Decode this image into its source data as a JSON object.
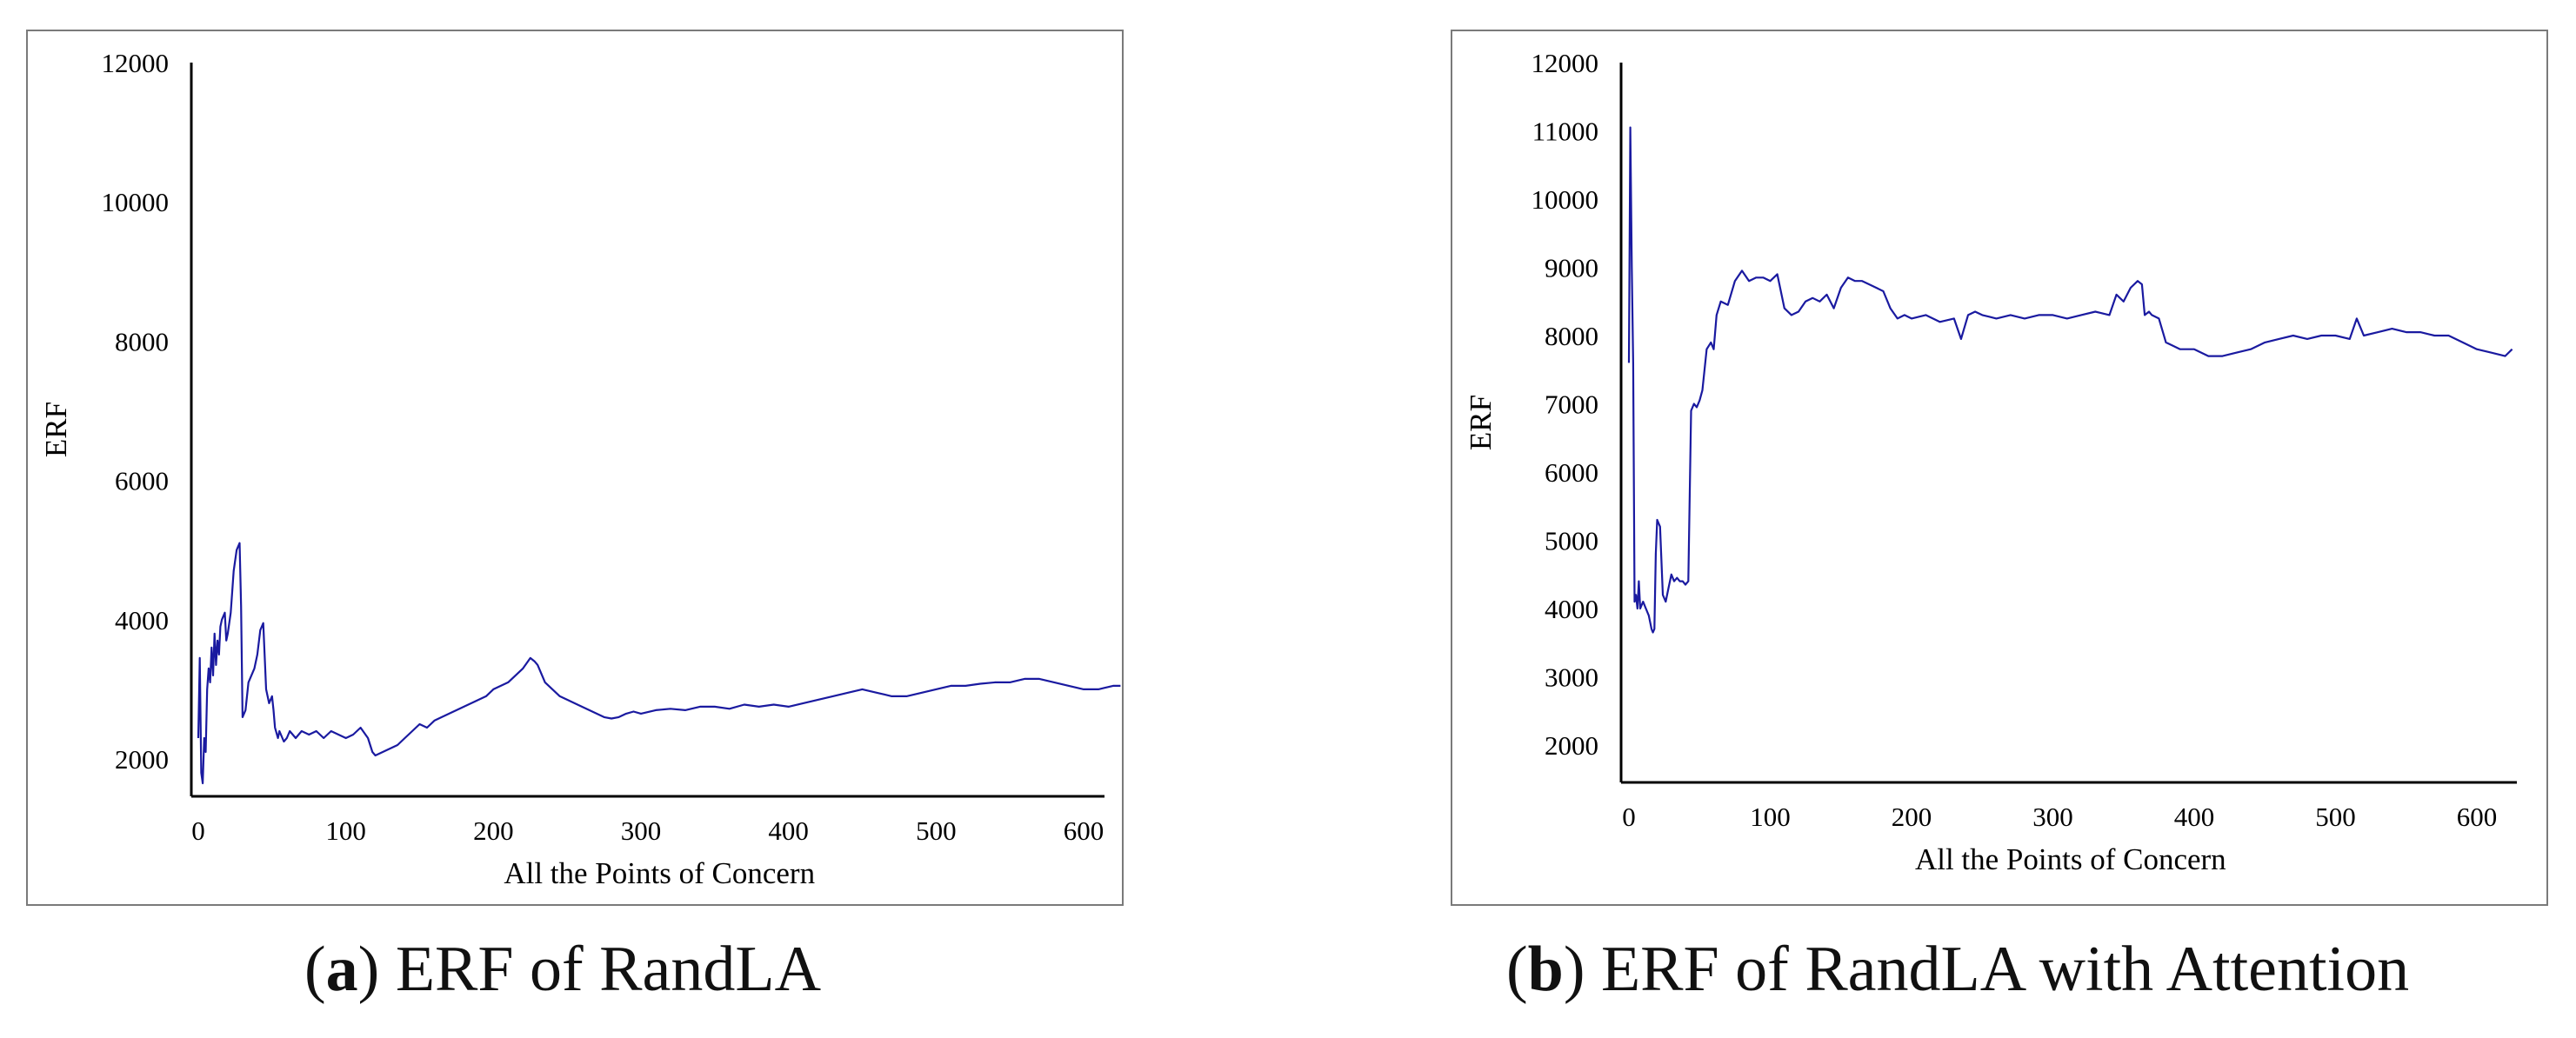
{
  "chart_data": [
    {
      "type": "line",
      "title": "",
      "xlabel": "All the Points of Concern",
      "ylabel": "ERF",
      "xlim": [
        0,
        625
      ],
      "ylim": [
        1500,
        12000
      ],
      "xticks": [
        0,
        100,
        200,
        300,
        400,
        500,
        600
      ],
      "yticks": [
        2000,
        4000,
        6000,
        8000,
        10000,
        12000
      ],
      "grid": false,
      "line_color": "#1a1aa0",
      "caption": {
        "label": "a",
        "text": "ERF of RandLA"
      },
      "series": [
        {
          "name": "ERF",
          "x": [
            0,
            1,
            2,
            3,
            4,
            5,
            6,
            7,
            8,
            9,
            10,
            11,
            12,
            13,
            14,
            15,
            16,
            18,
            19,
            20,
            22,
            23,
            24,
            26,
            27,
            28,
            29,
            30,
            32,
            33,
            34,
            36,
            38,
            40,
            42,
            44,
            46,
            48,
            50,
            51,
            52,
            54,
            55,
            56,
            58,
            60,
            62,
            64,
            66,
            70,
            75,
            80,
            85,
            90,
            95,
            100,
            105,
            110,
            115,
            118,
            120,
            125,
            130,
            135,
            140,
            145,
            150,
            155,
            160,
            165,
            170,
            175,
            180,
            185,
            190,
            195,
            200,
            205,
            210,
            215,
            220,
            225,
            228,
            230,
            232,
            235,
            240,
            245,
            250,
            255,
            260,
            265,
            270,
            275,
            280,
            285,
            290,
            295,
            300,
            310,
            320,
            330,
            340,
            350,
            360,
            370,
            380,
            390,
            400,
            410,
            420,
            430,
            440,
            450,
            460,
            470,
            480,
            490,
            500,
            510,
            520,
            530,
            540,
            550,
            560,
            570,
            580,
            590,
            600,
            610,
            620,
            625
          ],
          "values": [
            2300,
            3450,
            1800,
            1650,
            2300,
            2100,
            3000,
            3300,
            3100,
            3600,
            3200,
            3800,
            3350,
            3700,
            3500,
            3900,
            4000,
            4100,
            3700,
            3800,
            4100,
            4400,
            4700,
            5000,
            5050,
            5100,
            4200,
            2600,
            2700,
            2900,
            3100,
            3200,
            3300,
            3500,
            3850,
            3950,
            3000,
            2800,
            2900,
            2700,
            2450,
            2300,
            2400,
            2350,
            2250,
            2300,
            2400,
            2350,
            2300,
            2400,
            2350,
            2400,
            2300,
            2400,
            2350,
            2300,
            2350,
            2450,
            2300,
            2100,
            2050,
            2100,
            2150,
            2200,
            2300,
            2400,
            2500,
            2450,
            2550,
            2600,
            2650,
            2700,
            2750,
            2800,
            2850,
            2900,
            3000,
            3050,
            3100,
            3200,
            3300,
            3450,
            3400,
            3350,
            3250,
            3100,
            3000,
            2900,
            2850,
            2800,
            2750,
            2700,
            2650,
            2600,
            2580,
            2600,
            2650,
            2680,
            2650,
            2700,
            2720,
            2700,
            2750,
            2750,
            2720,
            2780,
            2750,
            2780,
            2750,
            2800,
            2850,
            2900,
            2950,
            3000,
            2950,
            2900,
            2900,
            2950,
            3000,
            3050,
            3050,
            3080,
            3100,
            3100,
            3150,
            3150,
            3100,
            3050,
            3000,
            3000,
            3050,
            3050
          ]
        }
      ]
    },
    {
      "type": "line",
      "title": "",
      "xlabel": "All the Points of Concern",
      "ylabel": "ERF",
      "xlim": [
        0,
        625
      ],
      "ylim": [
        1500,
        12000
      ],
      "xticks": [
        0,
        100,
        200,
        300,
        400,
        500,
        600
      ],
      "yticks": [
        2000,
        3000,
        4000,
        5000,
        6000,
        7000,
        8000,
        9000,
        10000,
        11000,
        12000
      ],
      "grid": false,
      "line_color": "#1a1aa0",
      "caption": {
        "label": "b",
        "text": "ERF of RandLA with Attention"
      },
      "series": [
        {
          "name": "ERF",
          "x": [
            0,
            1,
            2,
            3,
            4,
            5,
            6,
            7,
            8,
            10,
            12,
            14,
            15,
            16,
            17,
            18,
            19,
            20,
            22,
            24,
            26,
            28,
            30,
            32,
            34,
            36,
            38,
            40,
            42,
            44,
            46,
            48,
            50,
            52,
            55,
            58,
            60,
            62,
            65,
            70,
            75,
            80,
            85,
            90,
            95,
            100,
            105,
            110,
            115,
            120,
            125,
            130,
            135,
            140,
            145,
            150,
            155,
            160,
            165,
            170,
            175,
            180,
            185,
            190,
            195,
            200,
            210,
            220,
            230,
            235,
            240,
            245,
            250,
            260,
            270,
            280,
            290,
            300,
            310,
            320,
            330,
            340,
            345,
            350,
            355,
            360,
            363,
            365,
            368,
            370,
            375,
            380,
            385,
            390,
            400,
            410,
            420,
            430,
            440,
            450,
            460,
            470,
            480,
            490,
            500,
            510,
            515,
            520,
            530,
            540,
            550,
            560,
            570,
            580,
            590,
            600,
            610,
            620,
            625
          ],
          "values": [
            7600,
            11050,
            9000,
            7600,
            4100,
            4200,
            4000,
            4400,
            4000,
            4100,
            4000,
            3900,
            3800,
            3700,
            3650,
            3700,
            4800,
            5300,
            5200,
            4200,
            4100,
            4300,
            4500,
            4400,
            4450,
            4400,
            4400,
            4350,
            4400,
            6900,
            7000,
            6950,
            7050,
            7200,
            7800,
            7900,
            7800,
            8300,
            8500,
            8450,
            8800,
            8950,
            8800,
            8850,
            8850,
            8800,
            8900,
            8400,
            8300,
            8350,
            8500,
            8550,
            8500,
            8600,
            8400,
            8700,
            8850,
            8800,
            8800,
            8750,
            8700,
            8650,
            8400,
            8250,
            8300,
            8250,
            8300,
            8200,
            8250,
            7950,
            8300,
            8350,
            8300,
            8250,
            8300,
            8250,
            8300,
            8300,
            8250,
            8300,
            8350,
            8300,
            8600,
            8500,
            8700,
            8800,
            8750,
            8300,
            8350,
            8300,
            8250,
            7900,
            7850,
            7800,
            7800,
            7700,
            7700,
            7750,
            7800,
            7900,
            7950,
            8000,
            7950,
            8000,
            8000,
            7950,
            8250,
            8000,
            8050,
            8100,
            8050,
            8050,
            8000,
            8000,
            7900,
            7800,
            7750,
            7700,
            7800
          ]
        }
      ]
    }
  ]
}
